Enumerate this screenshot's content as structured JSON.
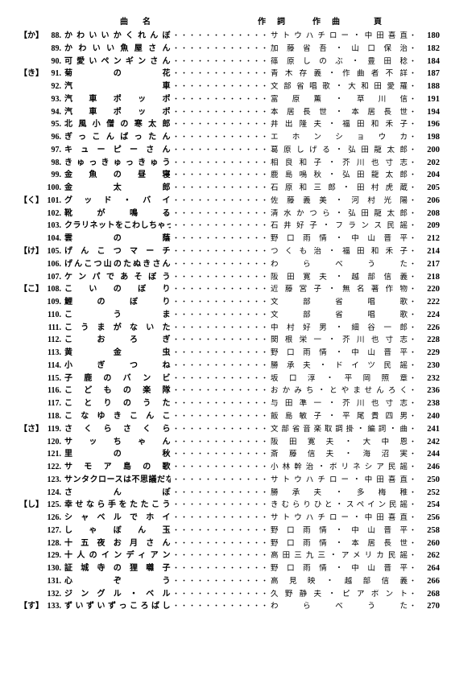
{
  "header": {
    "title": "曲名",
    "sakushi": "作詞",
    "sakkyoku": "作曲",
    "page": "頁"
  },
  "rows": [
    {
      "kana": "【か】",
      "num": "88",
      "title": "かわいいかくれんぼ",
      "credit": "サトウハチロー・中田喜直",
      "page": "180"
    },
    {
      "kana": "",
      "num": "89",
      "title": "かわいい魚屋さん",
      "credit": "加藤省吾・山口保治",
      "page": "182"
    },
    {
      "kana": "",
      "num": "90",
      "title": "可愛いペンギンさん",
      "credit": "篠原しのぶ・豊田稔",
      "page": "184"
    },
    {
      "kana": "【き】",
      "num": "91",
      "title": "菊の花",
      "credit": "青木存義・作曲者不詳",
      "page": "187"
    },
    {
      "kana": "",
      "num": "92",
      "title": "汽車",
      "credit": "文部省唱歌・大和田愛羅",
      "page": "188"
    },
    {
      "kana": "",
      "num": "93",
      "title": "汽車ポッポ",
      "credit": "富原薫・草川信",
      "page": "191"
    },
    {
      "kana": "",
      "num": "94",
      "title": "汽車ポッポ",
      "credit": "本居長世・本居長世",
      "page": "194"
    },
    {
      "kana": "",
      "num": "95",
      "title": "北風小僧の寒太郎",
      "credit": "井出隆夫・福田和禾子",
      "page": "196"
    },
    {
      "kana": "",
      "num": "96",
      "title": "ぎっこんばったん",
      "credit": "エホンショウカ",
      "page": "198"
    },
    {
      "kana": "",
      "num": "97",
      "title": "キューピーさん",
      "credit": "葛原しげる・弘田龍太郎",
      "page": "200"
    },
    {
      "kana": "",
      "num": "98",
      "title": "きゅっきゅっきゅう",
      "credit": "相良和子・芥川也寸志",
      "page": "202"
    },
    {
      "kana": "",
      "num": "99",
      "title": "金魚の昼寝",
      "credit": "鹿島鳴秋・弘田龍太郎",
      "page": "204"
    },
    {
      "kana": "",
      "num": "100",
      "title": "金太郎",
      "credit": "石原和三郎・田村虎蔵",
      "page": "205"
    },
    {
      "kana": "【く】",
      "num": "101",
      "title": "グッド・バイ",
      "credit": "佐藤義美・河村光陽",
      "page": "206"
    },
    {
      "kana": "",
      "num": "102",
      "title": "靴が鳴る",
      "credit": "清水かつら・弘田龍太郎",
      "page": "208"
    },
    {
      "kana": "",
      "num": "103",
      "title": "クラリネットをこわしちゃった",
      "credit": "石井好子・フランス民謡",
      "page": "209"
    },
    {
      "kana": "",
      "num": "104",
      "title": "雲の蔭",
      "credit": "野口雨情・中山晋平",
      "page": "212"
    },
    {
      "kana": "【け】",
      "num": "105",
      "title": "げんこつマーチ",
      "credit": "つくも治・福田和禾子",
      "page": "214"
    },
    {
      "kana": "",
      "num": "106",
      "title": "げんこつ山のたぬきさん",
      "credit": "わらべうた",
      "page": "217"
    },
    {
      "kana": "",
      "num": "107",
      "title": "ケンパであそぼう",
      "credit": "阪田寛夫・越部信義",
      "page": "218"
    },
    {
      "kana": "【こ】",
      "num": "108",
      "title": "こいのぼり",
      "credit": "近藤宮子・無名著作物",
      "page": "220"
    },
    {
      "kana": "",
      "num": "109",
      "title": "鯉のぼり",
      "credit": "文部省唱歌",
      "page": "222"
    },
    {
      "kana": "",
      "num": "110",
      "title": "こうま",
      "credit": "文部省唱歌",
      "page": "224"
    },
    {
      "kana": "",
      "num": "111",
      "title": "こうまがないた",
      "credit": "中村好男・細谷一郎",
      "page": "226"
    },
    {
      "kana": "",
      "num": "112",
      "title": "こおろぎ",
      "credit": "関根栄一・芥川也寸志",
      "page": "228"
    },
    {
      "kana": "",
      "num": "113",
      "title": "黄金虫",
      "credit": "野口雨情・中山晋平",
      "page": "229"
    },
    {
      "kana": "",
      "num": "114",
      "title": "小ぎつね",
      "credit": "勝承夫・ドイツ民謡",
      "page": "230"
    },
    {
      "kana": "",
      "num": "115",
      "title": "子鹿のバンビ",
      "credit": "坂口淳・平岡照章",
      "page": "232"
    },
    {
      "kana": "",
      "num": "116",
      "title": "こどもの楽隊",
      "credit": "おかみち・とやませんろく",
      "page": "236"
    },
    {
      "kana": "",
      "num": "117",
      "title": "ことりのうた",
      "credit": "与田準一・芥川也寸志",
      "page": "238"
    },
    {
      "kana": "",
      "num": "118",
      "title": "こなゆきこんこ",
      "credit": "飯島敏子・平尾貴四男",
      "page": "240"
    },
    {
      "kana": "【さ】",
      "num": "119",
      "title": "さくらさくら",
      "credit": "文部省音楽取調掛・編詞・曲",
      "page": "241"
    },
    {
      "kana": "",
      "num": "120",
      "title": "サッちゃん",
      "credit": "阪田寛夫・大中恩",
      "page": "242"
    },
    {
      "kana": "",
      "num": "121",
      "title": "里の秋",
      "credit": "斎藤信夫・海沼実",
      "page": "244"
    },
    {
      "kana": "",
      "num": "122",
      "title": "サモア島の歌",
      "credit": "小林幹治・ポリネシア民謡",
      "page": "246"
    },
    {
      "kana": "",
      "num": "123",
      "title": "サンタクロースは不思議だな",
      "credit": "サトウハチロー・中田喜直",
      "page": "250"
    },
    {
      "kana": "",
      "num": "124",
      "title": "さんぽ",
      "credit": "勝承夫・多梅稚",
      "page": "252"
    },
    {
      "kana": "【し】",
      "num": "125",
      "title": "幸せなら手をたたこう",
      "credit": "きむらりひと・スペイン民謡",
      "page": "254"
    },
    {
      "kana": "",
      "num": "126",
      "title": "シャベルでホイ",
      "credit": "サトウハチロー・中田喜直",
      "page": "256"
    },
    {
      "kana": "",
      "num": "127",
      "title": "しゃぼん玉",
      "credit": "野口雨情・中山晋平",
      "page": "258"
    },
    {
      "kana": "",
      "num": "128",
      "title": "十五夜お月さん",
      "credit": "野口雨情・本居長世",
      "page": "260"
    },
    {
      "kana": "",
      "num": "129",
      "title": "十人のインディアン",
      "credit": "高田三九三・アメリカ民謡",
      "page": "262"
    },
    {
      "kana": "",
      "num": "130",
      "title": "証城寺の狸囃子",
      "credit": "野口雨情・中山晋平",
      "page": "264"
    },
    {
      "kana": "",
      "num": "131",
      "title": "心ぞう",
      "credit": "高見映・越部信義",
      "page": "266"
    },
    {
      "kana": "",
      "num": "132",
      "title": "ジングル・ベル",
      "credit": "久野静夫・ピアポント",
      "page": "268"
    },
    {
      "kana": "【す】",
      "num": "133",
      "title": "ずいずいずっころばし",
      "credit": "わらべうた",
      "page": "270"
    }
  ],
  "style": {
    "bg": "#ffffff",
    "fg": "#000000",
    "font_size": 10,
    "row_height": 1.45
  }
}
